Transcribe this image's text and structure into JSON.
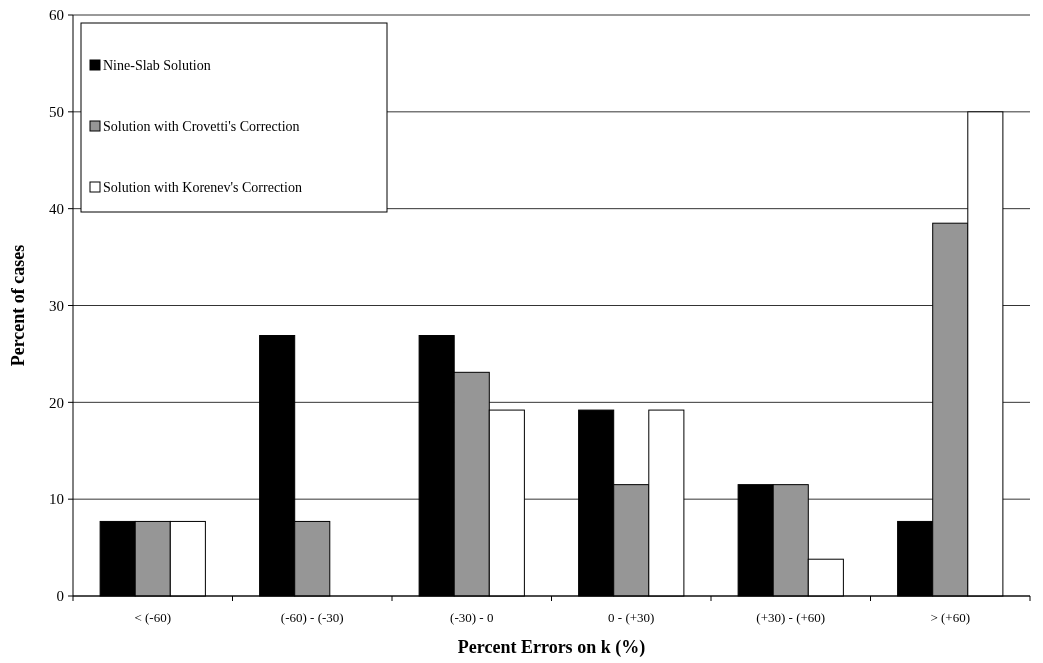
{
  "chart_data": {
    "type": "bar",
    "xlabel": "Percent Errors on k (%)",
    "ylabel": "Percent of cases",
    "categories": [
      "< (-60)",
      "(-60) - (-30)",
      "(-30) - 0",
      "0 - (+30)",
      "(+30) - (+60)",
      "> (+60)"
    ],
    "series": [
      {
        "name": "Nine-Slab Solution",
        "color": "#000000",
        "values": [
          7.7,
          26.9,
          26.9,
          19.2,
          11.5,
          7.7
        ]
      },
      {
        "name": "Solution with Crovetti's Correction",
        "color": "#969696",
        "values": [
          7.7,
          7.7,
          23.1,
          11.5,
          11.5,
          38.5
        ]
      },
      {
        "name": "Solution with Korenev's Correction",
        "color": "#ffffff",
        "values": [
          7.7,
          0,
          19.2,
          19.2,
          3.8,
          50
        ]
      }
    ],
    "ylim": [
      0,
      60
    ],
    "yticks": [
      0,
      10,
      20,
      30,
      40,
      50,
      60
    ],
    "grid": "y",
    "legend": "top left"
  }
}
